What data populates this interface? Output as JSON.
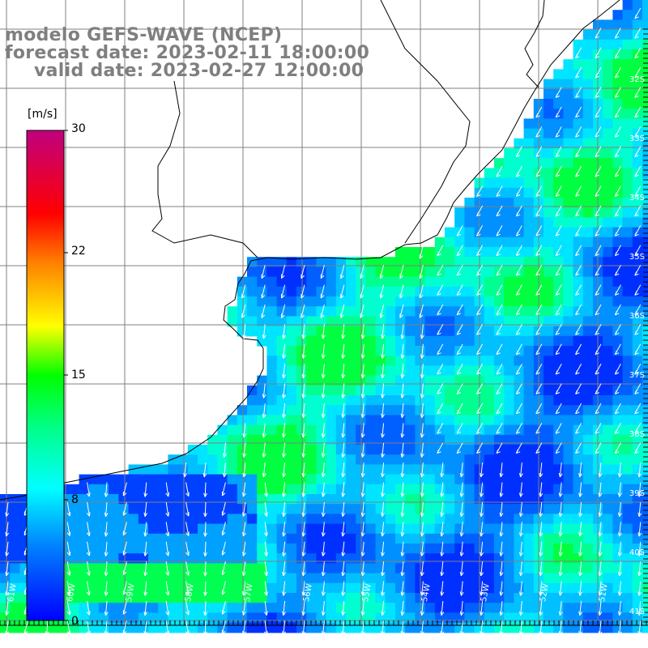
{
  "title": {
    "line1": "modelo GEFS-WAVE (NCEP)",
    "line2": "forecast date: 2023-02-11 18:00:00",
    "line3": "valid date: 2023-02-27 12:00:00"
  },
  "colorbar": {
    "unit": "[m/s]",
    "ticks": [
      "30",
      "22",
      "15",
      "8",
      "0"
    ],
    "tick_values": [
      30,
      22,
      15,
      8,
      0
    ],
    "min": 0,
    "max": 30,
    "colors": [
      "#0000ff",
      "#0080ff",
      "#00e5ff",
      "#00ff80",
      "#00ff00",
      "#ffff00",
      "#ff8000",
      "#ff0000",
      "#c0007f"
    ]
  },
  "axes": {
    "lat_labels": [
      "32S",
      "33S",
      "34S",
      "35S",
      "36S",
      "37S",
      "38S",
      "39S",
      "40S",
      "41S"
    ],
    "lon_labels": [
      "61W",
      "60W",
      "59W",
      "58W",
      "57W",
      "56W",
      "55W",
      "54W",
      "53W",
      "52W",
      "51W"
    ]
  },
  "colors": {
    "land": "#ffffff",
    "grid": "#7f7f7f",
    "coast": "#000000",
    "arrows": "#ffffff",
    "title": "#7f7f7f"
  }
}
